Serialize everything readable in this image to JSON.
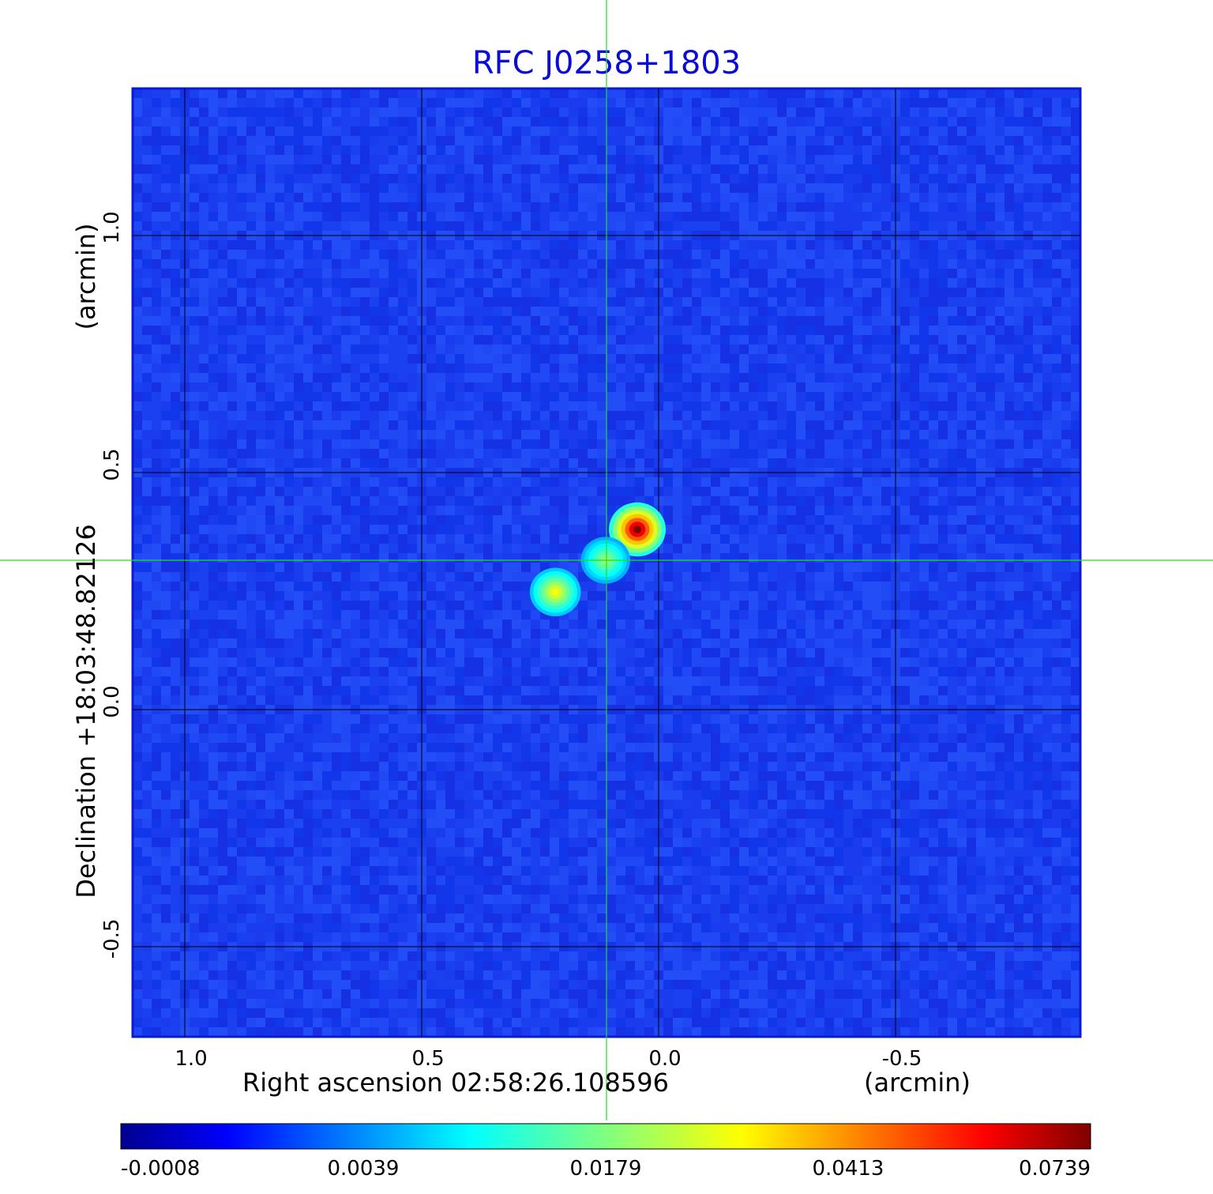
{
  "chart_data": {
    "type": "heatmap",
    "title": "RFC J0258+1803",
    "colormap": "jet",
    "xlabel": "Right ascension  02:58:26.108596",
    "xunit": "(arcmin)",
    "ylabel": "Declination  +18:03:48.82126",
    "yunit": "(arcmin)",
    "xlim": [
      1.11,
      -0.89
    ],
    "ylim": [
      -0.69,
      1.31
    ],
    "x_ticks": [
      1.0,
      0.5,
      0.0,
      -0.5
    ],
    "x_tick_labels": [
      "1.0",
      "0.5",
      "0.0",
      "-0.5"
    ],
    "y_ticks": [
      1.0,
      0.5,
      0.0,
      -0.5
    ],
    "y_tick_labels": [
      "1.0",
      "0.5",
      "0.0",
      "-0.5"
    ],
    "grid": true,
    "crosshair": {
      "x": 0.11,
      "y": 0.315,
      "color": "#22dd22"
    },
    "components": [
      {
        "x": 0.045,
        "y": 0.38,
        "peak": 0.0739
      },
      {
        "x": 0.112,
        "y": 0.315,
        "peak": 0.03
      },
      {
        "x": 0.218,
        "y": 0.248,
        "peak": 0.04
      }
    ],
    "colorbar": {
      "ticks": [
        "-0.0008",
        "0.0039",
        "0.0179",
        "0.0413",
        "0.0739"
      ]
    }
  }
}
